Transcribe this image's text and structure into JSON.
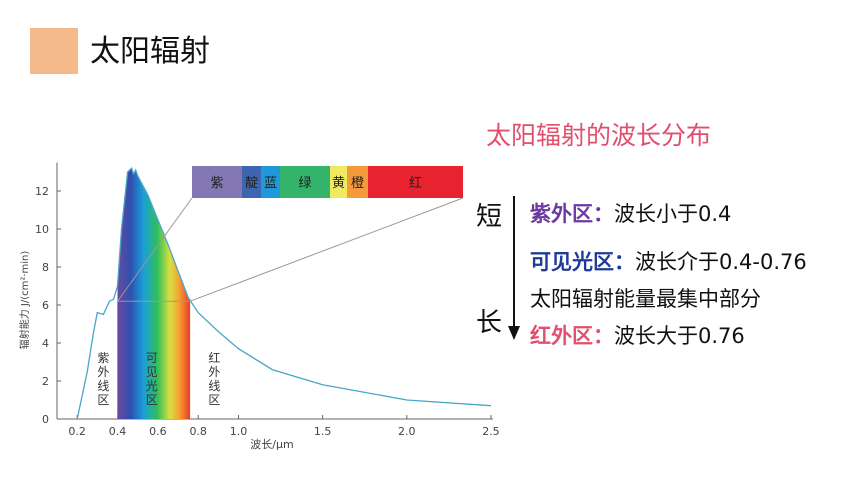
{
  "header": {
    "title": "太阳辐射"
  },
  "chart_data": {
    "type": "line",
    "xlabel": "波长/μm",
    "ylabel": "辐射能力 J/(cm²·min)",
    "x_ticks": [
      "0.2",
      "0.4",
      "0.6",
      "0.8",
      "1.0",
      "1.5",
      "2.0",
      "2.5"
    ],
    "y_ticks": [
      "0",
      "2",
      "4",
      "6",
      "8",
      "10",
      "12"
    ],
    "xlim": [
      0.1,
      2.5
    ],
    "ylim": [
      0,
      13.5
    ],
    "series": [
      {
        "x": [
          0.2,
          0.25,
          0.28,
          0.3,
          0.33,
          0.36,
          0.38,
          0.4,
          0.42,
          0.45,
          0.47,
          0.48,
          0.49,
          0.5,
          0.52,
          0.55,
          0.6,
          0.65,
          0.7,
          0.75,
          0.8,
          0.9,
          1.0,
          1.2,
          1.5,
          2.0,
          2.5
        ],
        "y": [
          0,
          2.5,
          4.5,
          5.6,
          5.5,
          6.2,
          6.3,
          7.0,
          10.0,
          13.0,
          13.2,
          12.9,
          13.1,
          12.8,
          12.4,
          11.8,
          10.5,
          9.2,
          7.8,
          6.4,
          5.6,
          4.6,
          3.7,
          2.6,
          1.8,
          1.0,
          0.7
        ]
      }
    ],
    "regions": [
      {
        "label": "紫外线区",
        "to": 0.4
      },
      {
        "label": "可见光区",
        "from": 0.4,
        "to": 0.76
      },
      {
        "label": "红外线区",
        "from": 0.76
      }
    ],
    "spectrum_bar": [
      {
        "label": "紫",
        "color": "#8478b4",
        "w": 50
      },
      {
        "label": "靛",
        "color": "#3e66b0",
        "w": 19
      },
      {
        "label": "蓝",
        "color": "#1e9ad8",
        "w": 19
      },
      {
        "label": "绿",
        "color": "#34b36a",
        "w": 50
      },
      {
        "label": "黄",
        "color": "#f0ea60",
        "w": 17
      },
      {
        "label": "橙",
        "color": "#f49a3a",
        "w": 21
      },
      {
        "label": "红",
        "color": "#e8232f",
        "w": 95
      }
    ]
  },
  "right": {
    "subtitle": "太阳辐射的波长分布",
    "short": "短",
    "long": "长",
    "uv_key": "紫外区：",
    "uv_text": "波长小于0.4",
    "vis_key": "可见光区：",
    "vis_text": "波长介于0.4-0.76",
    "vis_text2": "太阳辐射能量最集中部分",
    "ir_key": "红外区：",
    "ir_text": "波长大于0.76"
  }
}
